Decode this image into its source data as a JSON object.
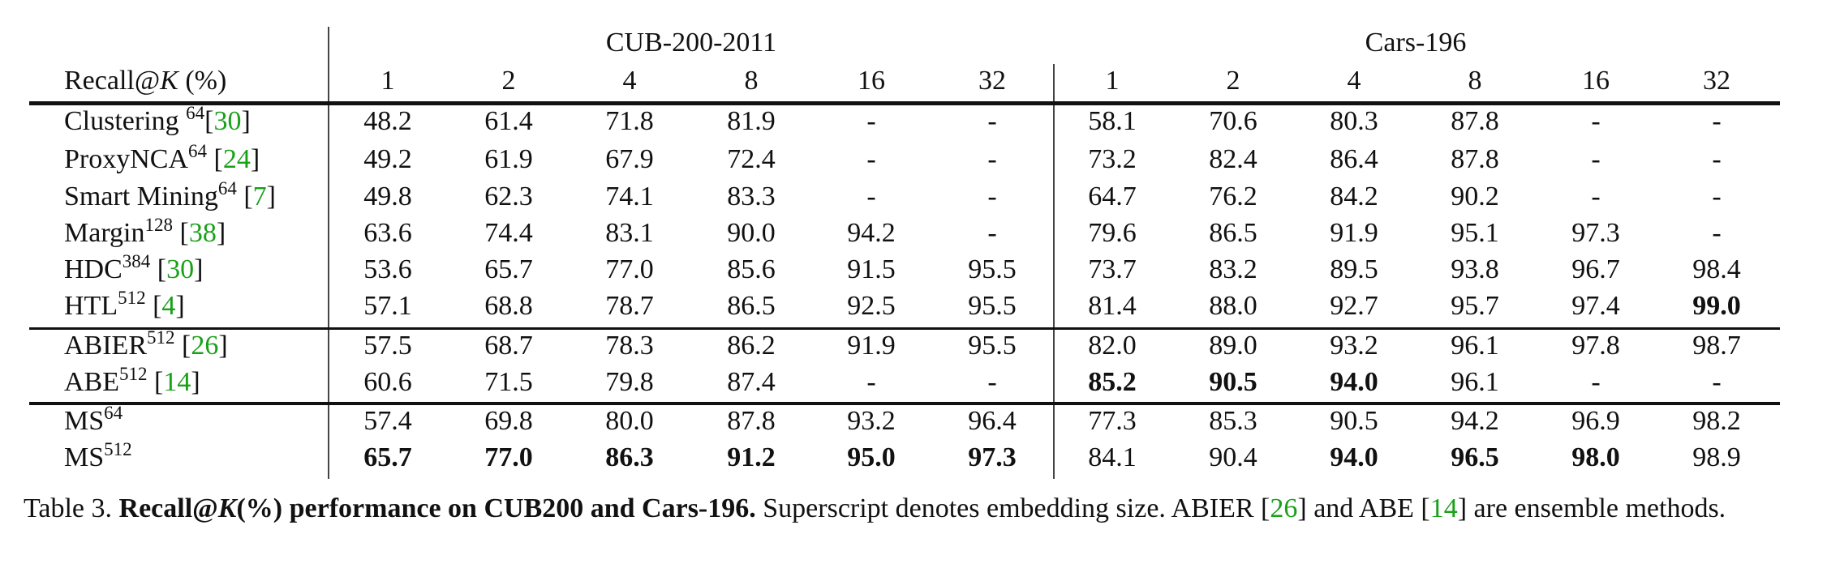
{
  "header": {
    "label_prefix": "Recall@",
    "label_k": "K",
    "label_suffix": " (%)",
    "groups": [
      "CUB-200-2011",
      "Cars-196"
    ],
    "ks": [
      "1",
      "2",
      "4",
      "8",
      "16",
      "32"
    ]
  },
  "rows": [
    {
      "name": "Clustering ",
      "sup": "64",
      "ref": "30",
      "sp": "",
      "values": [
        "48.2",
        "61.4",
        "71.8",
        "81.9",
        "-",
        "-",
        "58.1",
        "70.6",
        "80.3",
        "87.8",
        "-",
        "-"
      ],
      "bold": []
    },
    {
      "name": "ProxyNCA",
      "sup": "64",
      "ref": "24",
      "sp": " ",
      "values": [
        "49.2",
        "61.9",
        "67.9",
        "72.4",
        "-",
        "-",
        "73.2",
        "82.4",
        "86.4",
        "87.8",
        "-",
        "-"
      ],
      "bold": []
    },
    {
      "name": "Smart Mining",
      "sup": "64",
      "ref": "7",
      "sp": " ",
      "values": [
        "49.8",
        "62.3",
        "74.1",
        "83.3",
        "-",
        "-",
        "64.7",
        "76.2",
        "84.2",
        "90.2",
        "-",
        "-"
      ],
      "bold": []
    },
    {
      "name": "Margin",
      "sup": "128",
      "ref": "38",
      "sp": " ",
      "values": [
        "63.6",
        "74.4",
        "83.1",
        "90.0",
        "94.2",
        "-",
        "79.6",
        "86.5",
        "91.9",
        "95.1",
        "97.3",
        "-"
      ],
      "bold": []
    },
    {
      "name": "HDC",
      "sup": "384",
      "ref": "30",
      "sp": " ",
      "values": [
        "53.6",
        "65.7",
        "77.0",
        "85.6",
        "91.5",
        "95.5",
        "73.7",
        "83.2",
        "89.5",
        "93.8",
        "96.7",
        "98.4"
      ],
      "bold": []
    },
    {
      "name": "HTL",
      "sup": "512",
      "ref": "4",
      "sp": " ",
      "values": [
        "57.1",
        "68.8",
        "78.7",
        "86.5",
        "92.5",
        "95.5",
        "81.4",
        "88.0",
        "92.7",
        "95.7",
        "97.4",
        "99.0"
      ],
      "bold": [
        11
      ]
    },
    {
      "name": "ABIER",
      "sup": "512",
      "ref": "26",
      "sp": " ",
      "values": [
        "57.5",
        "68.7",
        "78.3",
        "86.2",
        "91.9",
        "95.5",
        "82.0",
        "89.0",
        "93.2",
        "96.1",
        "97.8",
        "98.7"
      ],
      "bold": []
    },
    {
      "name": "ABE",
      "sup": "512",
      "ref": "14",
      "sp": " ",
      "values": [
        "60.6",
        "71.5",
        "79.8",
        "87.4",
        "-",
        "-",
        "85.2",
        "90.5",
        "94.0",
        "96.1",
        "-",
        "-"
      ],
      "bold": [
        6,
        7,
        8
      ]
    },
    {
      "name": "MS",
      "sup": "64",
      "ref": null,
      "sp": "",
      "values": [
        "57.4",
        "69.8",
        "80.0",
        "87.8",
        "93.2",
        "96.4",
        "77.3",
        "85.3",
        "90.5",
        "94.2",
        "96.9",
        "98.2"
      ],
      "bold": []
    },
    {
      "name": "MS",
      "sup": "512",
      "ref": null,
      "sp": "",
      "values": [
        "65.7",
        "77.0",
        "86.3",
        "91.2",
        "95.0",
        "97.3",
        "84.1",
        "90.4",
        "94.0",
        "96.5",
        "98.0",
        "98.9"
      ],
      "bold": [
        0,
        1,
        2,
        3,
        4,
        5,
        8,
        9,
        10
      ]
    }
  ],
  "caption": {
    "label": "Table 3. ",
    "bold_prefix": "Recall@",
    "bold_k": "K",
    "bold_rest": "(%) performance on CUB200 and Cars-196.",
    "text1": " Superscript denotes embedding size.  ABIER [",
    "ref1": "26",
    "text2": "] and ABE [",
    "ref2": "14",
    "text3": "] are ensemble methods."
  },
  "colors": {
    "citation": "#19a119",
    "text": "#111111"
  }
}
